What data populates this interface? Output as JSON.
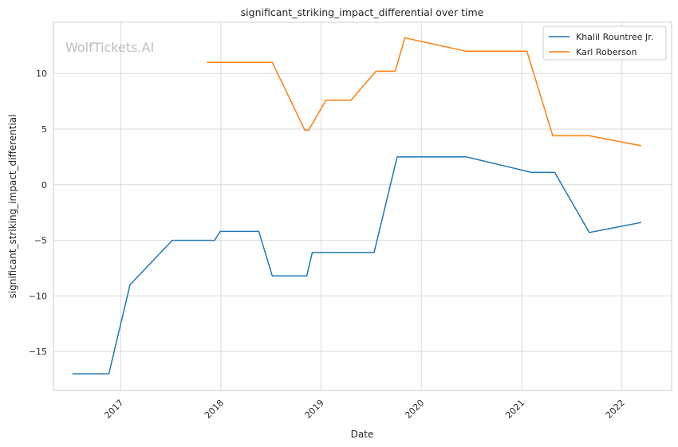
{
  "chart_data": {
    "type": "line",
    "title": "significant_striking_impact_differential over time",
    "xlabel": "Date",
    "ylabel": "significant_striking_impact_differential",
    "watermark": "WolfTickets.AI",
    "xlim": [
      "2016-05-01",
      "2022-07-01"
    ],
    "ylim": [
      -18.5,
      14.6
    ],
    "x_ticks": [
      "2017-01-01",
      "2018-01-01",
      "2019-01-01",
      "2020-01-01",
      "2021-01-01",
      "2022-01-01"
    ],
    "x_tick_labels": [
      "2017",
      "2018",
      "2019",
      "2020",
      "2021",
      "2022"
    ],
    "y_ticks": [
      -15,
      -10,
      -5,
      0,
      5,
      10
    ],
    "y_tick_labels": [
      "−15",
      "−10",
      "−5",
      "0",
      "5",
      "10"
    ],
    "grid": true,
    "legend_position": "top-right",
    "series": [
      {
        "name": "Khalil Rountree Jr.",
        "color": "#1f77b4",
        "points": [
          {
            "x": "2016-07-09",
            "y": -17.0
          },
          {
            "x": "2016-11-19",
            "y": -17.0
          },
          {
            "x": "2017-02-04",
            "y": -9.0
          },
          {
            "x": "2017-07-08",
            "y": -5.0
          },
          {
            "x": "2017-12-09",
            "y": -5.0
          },
          {
            "x": "2017-12-30",
            "y": -4.2
          },
          {
            "x": "2018-05-19",
            "y": -4.2
          },
          {
            "x": "2018-07-07",
            "y": -8.2
          },
          {
            "x": "2018-11-10",
            "y": -8.2
          },
          {
            "x": "2018-11-30",
            "y": -6.1
          },
          {
            "x": "2019-03-30",
            "y": -6.1
          },
          {
            "x": "2019-07-13",
            "y": -6.1
          },
          {
            "x": "2019-10-05",
            "y": 2.5
          },
          {
            "x": "2020-06-13",
            "y": 2.5
          },
          {
            "x": "2021-02-06",
            "y": 1.1
          },
          {
            "x": "2021-05-01",
            "y": 1.1
          },
          {
            "x": "2021-09-04",
            "y": -4.3
          },
          {
            "x": "2022-03-12",
            "y": -3.4
          }
        ]
      },
      {
        "name": "Karl Roberson",
        "color": "#ff7f0e",
        "points": [
          {
            "x": "2017-11-11",
            "y": 11.0
          },
          {
            "x": "2018-07-07",
            "y": 11.0
          },
          {
            "x": "2018-11-03",
            "y": 4.9
          },
          {
            "x": "2018-11-17",
            "y": 4.9
          },
          {
            "x": "2019-01-19",
            "y": 7.6
          },
          {
            "x": "2019-04-20",
            "y": 7.6
          },
          {
            "x": "2019-07-20",
            "y": 10.2
          },
          {
            "x": "2019-09-28",
            "y": 10.2
          },
          {
            "x": "2019-11-02",
            "y": 13.2
          },
          {
            "x": "2020-06-13",
            "y": 12.0
          },
          {
            "x": "2021-01-20",
            "y": 12.0
          },
          {
            "x": "2021-04-24",
            "y": 4.4
          },
          {
            "x": "2021-09-04",
            "y": 4.4
          },
          {
            "x": "2022-03-12",
            "y": 3.5
          }
        ]
      }
    ]
  }
}
